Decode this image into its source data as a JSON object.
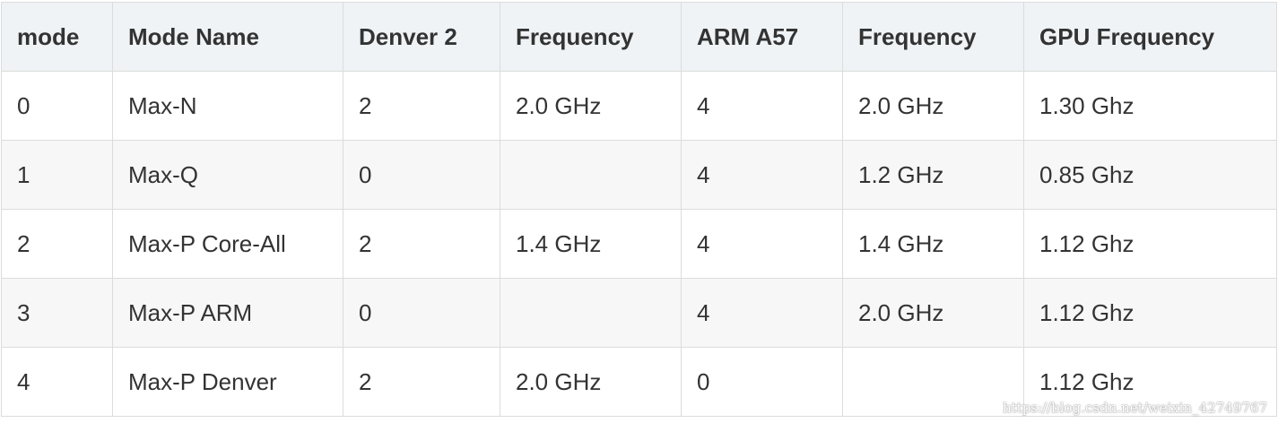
{
  "table": {
    "headers": [
      "mode",
      "Mode Name",
      "Denver 2",
      "Frequency",
      "ARM A57",
      "Frequency",
      "GPU Frequency"
    ],
    "rows": [
      [
        "0",
        "Max-N",
        "2",
        "2.0 GHz",
        "4",
        "2.0 GHz",
        "1.30 Ghz"
      ],
      [
        "1",
        "Max-Q",
        "0",
        "",
        "4",
        "1.2 GHz",
        "0.85 Ghz"
      ],
      [
        "2",
        "Max-P Core-All",
        "2",
        "1.4 GHz",
        "4",
        "1.4 GHz",
        "1.12 Ghz"
      ],
      [
        "3",
        "Max-P ARM",
        "0",
        "",
        "4",
        "2.0 GHz",
        "1.12 Ghz"
      ],
      [
        "4",
        "Max-P Denver",
        "2",
        "2.0 GHz",
        "0",
        "",
        "1.12 Ghz"
      ]
    ]
  },
  "watermark": "https://blog.csdn.net/weixin_42749767"
}
